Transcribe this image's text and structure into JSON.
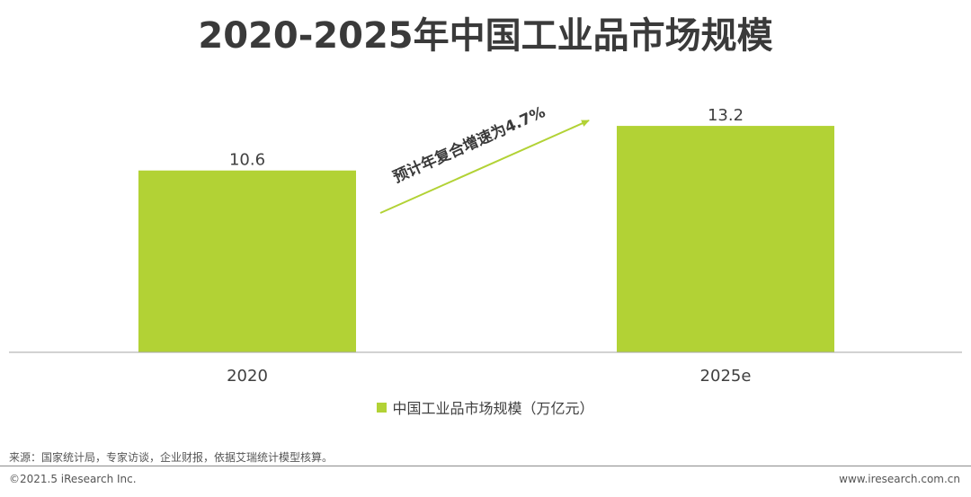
{
  "chart_data": {
    "type": "bar",
    "title": "2020-2025年中国工业品市场规模",
    "categories": [
      "2020",
      "2025e"
    ],
    "series": [
      {
        "name": "中国工业品市场规模（万亿元）",
        "values": [
          10.6,
          13.2
        ]
      }
    ],
    "data_labels": [
      "10.6",
      "13.2"
    ],
    "ylim": [
      0,
      15.3
    ],
    "grid": false,
    "legend": "bottom-center",
    "annotation": "预计年复合增速为4.7%"
  },
  "colors": {
    "bar": "#b2d235",
    "arrow": "#b2d235",
    "axis": "#a6a6a6"
  },
  "footer": {
    "source": "来源：国家统计局，专家访谈，企业财报，依据艾瑞统计模型核算。",
    "copyright": "©2021.5 iResearch Inc.",
    "website": "www.iresearch.com.cn"
  }
}
